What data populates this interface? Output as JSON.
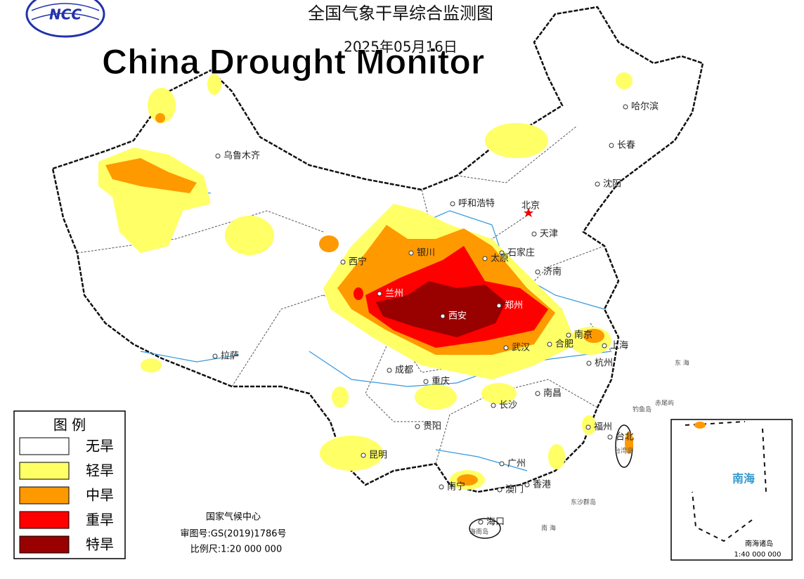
{
  "header": {
    "logo": "NCC",
    "title_cn": "全国气象干旱综合监测图",
    "date": "2025年05月16日",
    "title_en": "China Drought Monitor"
  },
  "legend": {
    "title": "图 例",
    "items": [
      {
        "label": "无旱",
        "color": "#ffffff"
      },
      {
        "label": "轻旱",
        "color": "#ffff66"
      },
      {
        "label": "中旱",
        "color": "#ff9900"
      },
      {
        "label": "重旱",
        "color": "#ff0000"
      },
      {
        "label": "特旱",
        "color": "#990000"
      }
    ]
  },
  "cities": [
    "乌鲁木齐",
    "哈尔滨",
    "长春",
    "沈阳",
    "呼和浩特",
    "北京",
    "天津",
    "石家庄",
    "银川",
    "西宁",
    "太原",
    "济南",
    "兰州",
    "西安",
    "郑州",
    "南京",
    "合肥",
    "上海",
    "武汉",
    "杭州",
    "拉萨",
    "成都",
    "重庆",
    "长沙",
    "南昌",
    "贵阳",
    "福州",
    "台北",
    "昆明",
    "广州",
    "南宁",
    "澳门",
    "香港",
    "海口"
  ],
  "places": [
    "钓鱼岛",
    "赤尾屿",
    "东沙群岛",
    "海南岛",
    "台湾岛",
    "东 海",
    "南 海"
  ],
  "footer": {
    "org": "国家气候中心",
    "approval": "审图号:GS(2019)1786号",
    "scale": "比例尺:1:20 000 000"
  },
  "inset": {
    "sea": "南海",
    "title": "南海诸岛",
    "scale": "1:40 000 000"
  }
}
